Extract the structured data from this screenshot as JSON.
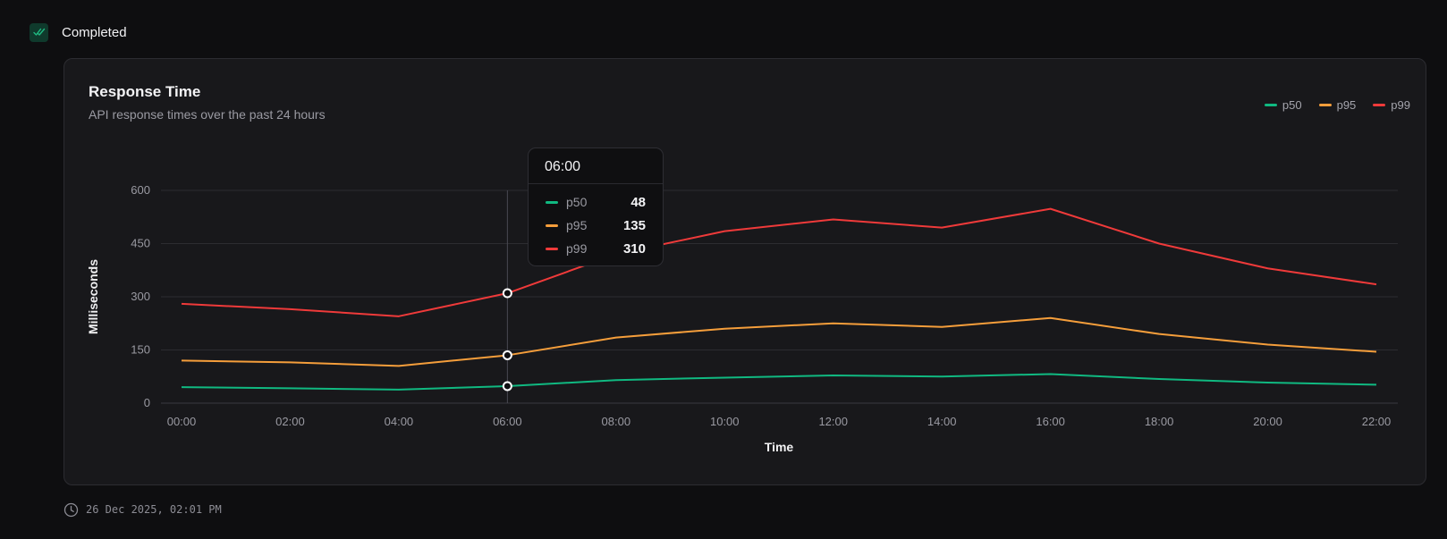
{
  "status": {
    "label": "Completed",
    "icon": "double-check-icon",
    "color": "#1fb981"
  },
  "card": {
    "title": "Response Time",
    "subtitle": "API response times over the past 24 hours"
  },
  "tooltip": {
    "title": "06:00",
    "rows": [
      {
        "name": "p50",
        "value": "48",
        "color": "#10b981"
      },
      {
        "name": "p95",
        "value": "135",
        "color": "#f59e3b"
      },
      {
        "name": "p99",
        "value": "310",
        "color": "#ef3a3a"
      }
    ]
  },
  "timestamp": {
    "icon": "clock-icon",
    "text": "26 Dec 2025, 02:01 PM"
  },
  "chart_data": {
    "type": "line",
    "title": "Response Time",
    "xlabel": "Time",
    "ylabel": "Milliseconds",
    "ylim": [
      0,
      600
    ],
    "yticks": [
      0,
      150,
      300,
      450,
      600
    ],
    "grid": true,
    "legend_position": "top-right",
    "active_category": "06:00",
    "categories": [
      "00:00",
      "02:00",
      "04:00",
      "06:00",
      "08:00",
      "10:00",
      "12:00",
      "14:00",
      "16:00",
      "18:00",
      "20:00",
      "22:00"
    ],
    "series": [
      {
        "name": "p50",
        "color": "#10b981",
        "values": [
          45,
          42,
          38,
          48,
          65,
          72,
          78,
          75,
          82,
          68,
          58,
          52
        ]
      },
      {
        "name": "p95",
        "color": "#f59e3b",
        "values": [
          120,
          115,
          105,
          135,
          185,
          210,
          225,
          215,
          240,
          195,
          165,
          145
        ]
      },
      {
        "name": "p99",
        "color": "#ef3a3a",
        "values": [
          280,
          265,
          245,
          310,
          420,
          485,
          518,
          495,
          548,
          450,
          380,
          335
        ]
      }
    ]
  }
}
